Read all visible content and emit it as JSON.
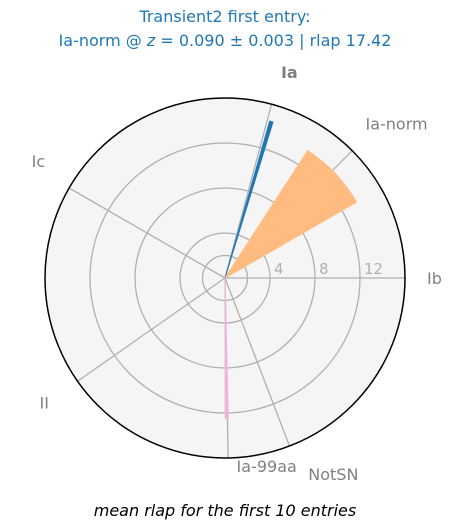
{
  "chart_data": {
    "type": "polar-bar",
    "title_line1": "Transient2 first entry:",
    "title_line2": "Ia-norm @ z = 0.090 ± 0.003 | rlap 17.42",
    "title_line2_parts": {
      "prefix": "Ia-norm @ ",
      "z_symbol": "z",
      "z_expr": " = 0.090 ± 0.003",
      "suffix": " | rlap 17.42"
    },
    "footnote": "mean rlap for the first 10 entries",
    "radial_ticks": [
      4,
      8,
      12
    ],
    "rmax": 16,
    "categories": [
      {
        "label": "Ia",
        "angle_deg": 75,
        "color": "#1f77b4",
        "highlight": true
      },
      {
        "label": "Ia-norm",
        "angle_deg": 45,
        "color": "#ff7f0e",
        "highlight": true
      },
      {
        "label": "Ib",
        "angle_deg": 0,
        "color": "#808080",
        "highlight": false
      },
      {
        "label": "NotSN",
        "angle_deg": -69,
        "color": "#808080",
        "highlight": false
      },
      {
        "label": "Ia-99aa",
        "angle_deg": -89,
        "color": "#e377c2",
        "highlight": true
      },
      {
        "label": "II",
        "angle_deg": -145,
        "color": "#808080",
        "highlight": false
      },
      {
        "label": "Ic",
        "angle_deg": 150,
        "color": "#808080",
        "highlight": false
      }
    ],
    "series": [
      {
        "name": "Ia",
        "value": 14.5,
        "angle_deg": 73.5,
        "width_deg": 1.2,
        "color": "#1f77b4",
        "opacity": 1.0
      },
      {
        "name": "Ia-norm",
        "value": 13.5,
        "angle_deg": 43.5,
        "width_deg": 27,
        "color": "#ffbb80",
        "opacity": 1.0
      },
      {
        "name": "Ia-99aa",
        "value": 12.5,
        "angle_deg": -89.3,
        "width_deg": 1.3,
        "color": "#f0b2dc",
        "opacity": 1.0
      }
    ],
    "colors": {
      "face": "#f5f5f5",
      "grid": "#b0b0b0",
      "outline": "#000000"
    }
  }
}
